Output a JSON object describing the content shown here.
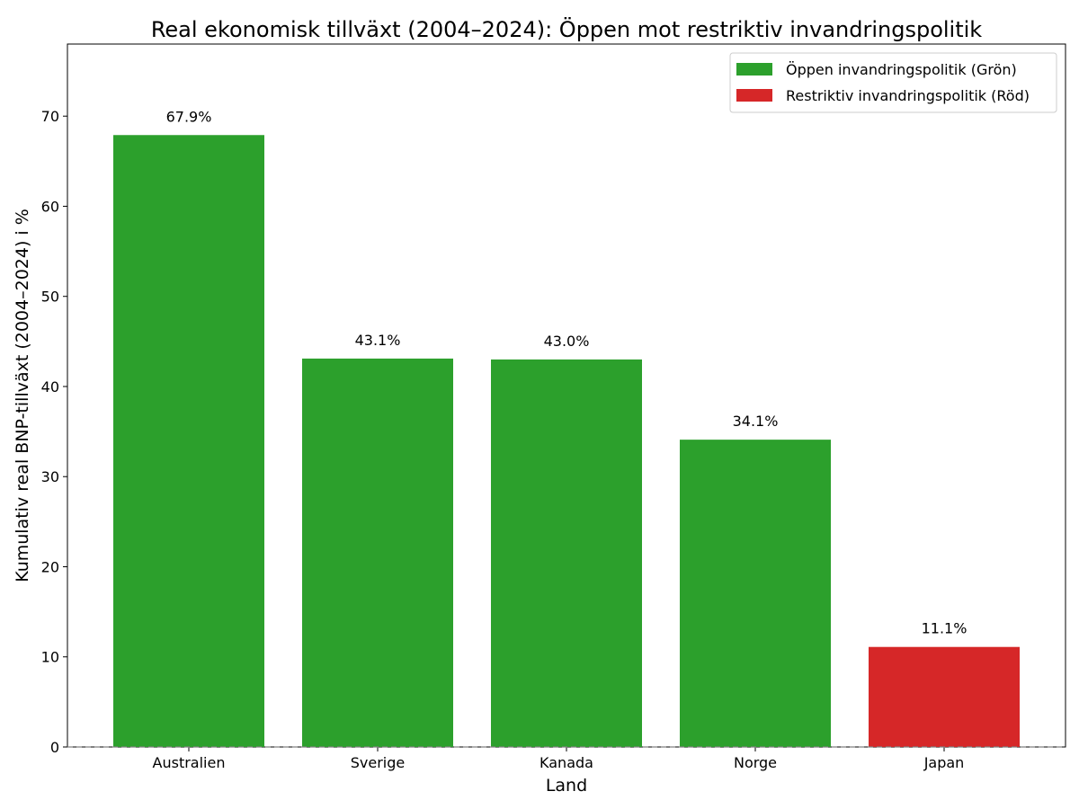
{
  "chart_data": {
    "type": "bar",
    "title": "Real ekonomisk tillväxt (2004–2024): Öppen mot restriktiv invandringspolitik",
    "xlabel": "Land",
    "ylabel": "Kumulativ real BNP-tillväxt (2004–2024) i %",
    "categories": [
      "Australien",
      "Sverige",
      "Kanada",
      "Norge",
      "Japan"
    ],
    "values": [
      67.9,
      43.1,
      43.0,
      34.1,
      11.1
    ],
    "data_labels": [
      "67.9%",
      "43.1%",
      "43.0%",
      "34.1%",
      "11.1%"
    ],
    "bar_groups": [
      "open",
      "open",
      "open",
      "open",
      "restrictive"
    ],
    "ylim": [
      0,
      78
    ],
    "yticks": [
      0,
      10,
      20,
      30,
      40,
      50,
      60,
      70
    ],
    "grid": false,
    "zero_line": "dashed",
    "legend": {
      "placement": "top-right",
      "entries": [
        {
          "key": "open",
          "label": "Öppen invandringspolitik (Grön)",
          "color": "#2ca02c"
        },
        {
          "key": "restrictive",
          "label": "Restriktiv invandringspolitik (Röd)",
          "color": "#d62728"
        }
      ]
    }
  }
}
